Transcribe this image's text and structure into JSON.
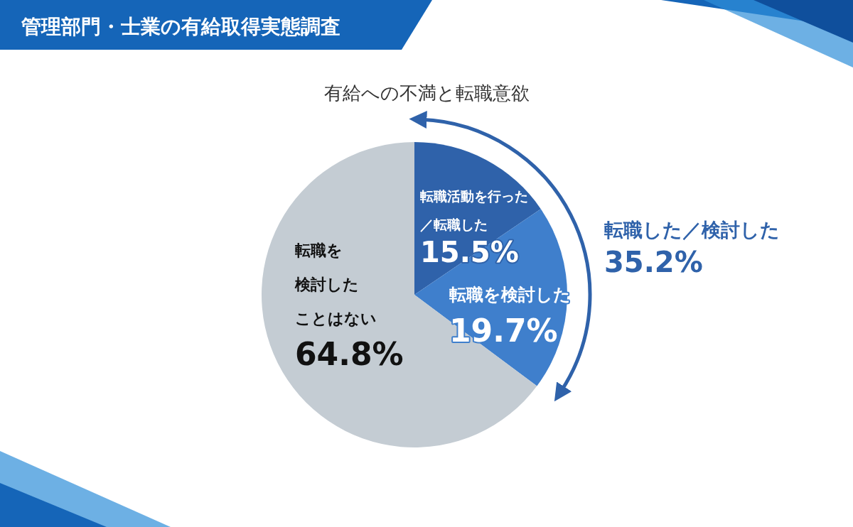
{
  "chart_data": {
    "type": "pie",
    "title": "管理部門・士業の有給取得実態調査",
    "subtitle": "有給への不満と転職意欲",
    "categories": [
      "転職活動を行った／転職した",
      "転職を検討した",
      "転職を検討したことはない"
    ],
    "values": [
      15.5,
      19.7,
      64.8
    ],
    "colors": [
      "#2f62aa",
      "#3f7fcc",
      "#c4ccd3"
    ],
    "value_labels": [
      "15.5%",
      "19.7%",
      "64.8%"
    ],
    "annotations": [
      "転職した／検討した\n35.2%"
    ]
  }
}
